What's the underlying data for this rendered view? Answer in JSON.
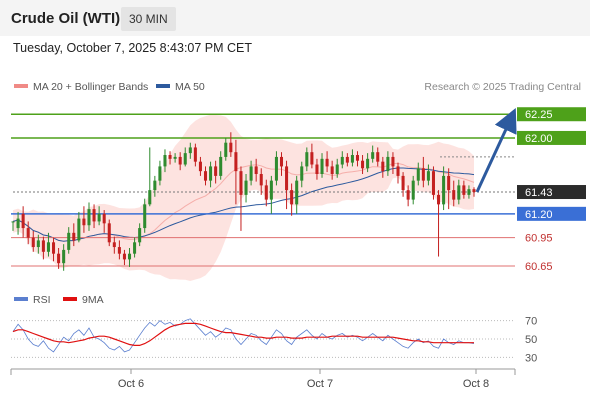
{
  "header": {
    "title": "Crude Oil (WTI)",
    "timeframe": "30 MIN"
  },
  "datetime": "Tuesday, October 7, 2025 8:43:07 PM CET",
  "legend": {
    "ma20": {
      "label": "MA 20 + Bollinger Bands",
      "color": "#f08a86"
    },
    "ma50": {
      "label": "MA 50",
      "color": "#2d5a9e"
    }
  },
  "credit": "Research © 2025 Trading Central",
  "rsi_legend": {
    "rsi": {
      "label": "RSI",
      "color": "#5b7fcf"
    },
    "ma9": {
      "label": "9MA",
      "color": "#e01010"
    }
  },
  "colors": {
    "up": "#2f8b2f",
    "down": "#c42020",
    "green_level": "#4ea11a",
    "blue_level": "#3a6fd6",
    "red_level": "#e07070",
    "current": "#2b2b2b"
  },
  "chart_data": [
    {
      "type": "candlestick",
      "title": "Crude Oil (WTI)",
      "ylim": [
        60.45,
        62.4
      ],
      "x_tick_labels": [
        "Oct 6",
        "Oct 7",
        "Oct 8"
      ],
      "current_price": 61.43,
      "levels": [
        {
          "value": 62.25,
          "label": "62.25",
          "style": "green-box"
        },
        {
          "value": 62.0,
          "label": "62.00",
          "style": "green-box"
        },
        {
          "value": 61.2,
          "label": "61.20",
          "style": "blue-box"
        },
        {
          "value": 60.95,
          "label": "60.95",
          "style": "red-text"
        },
        {
          "value": 60.65,
          "label": "60.65",
          "style": "red-text"
        }
      ],
      "forecast_arrow": {
        "from": 61.43,
        "to": 62.25
      },
      "candles": [
        [
          61.12,
          61.12,
          61.12,
          61.02
        ],
        [
          61.05,
          61.15,
          61.22,
          60.98
        ],
        [
          61.2,
          61.05,
          61.28,
          60.95
        ],
        [
          61.05,
          60.95,
          61.12,
          60.88
        ],
        [
          60.95,
          60.85,
          61.02,
          60.8
        ],
        [
          60.85,
          60.92,
          60.98,
          60.78
        ],
        [
          60.92,
          60.8,
          60.96,
          60.72
        ],
        [
          60.8,
          60.9,
          61.0,
          60.75
        ],
        [
          60.9,
          60.78,
          60.95,
          60.7
        ],
        [
          60.78,
          60.68,
          60.84,
          60.62
        ],
        [
          60.68,
          60.82,
          60.88,
          60.6
        ],
        [
          60.82,
          61.0,
          61.06,
          60.78
        ],
        [
          61.0,
          60.92,
          61.1,
          60.86
        ],
        [
          60.92,
          61.15,
          61.22,
          60.9
        ],
        [
          61.15,
          61.08,
          61.28,
          61.0
        ],
        [
          61.08,
          61.25,
          61.32,
          61.02
        ],
        [
          61.25,
          61.12,
          61.3,
          61.05
        ],
        [
          61.12,
          61.2,
          61.28,
          61.08
        ],
        [
          61.2,
          61.1,
          61.24,
          61.0
        ],
        [
          61.1,
          60.9,
          61.14,
          60.86
        ],
        [
          60.9,
          60.85,
          60.96,
          60.78
        ],
        [
          60.85,
          60.78,
          60.92,
          60.72
        ],
        [
          60.78,
          60.72,
          60.82,
          60.66
        ],
        [
          60.72,
          60.78,
          60.84,
          60.64
        ],
        [
          60.78,
          60.9,
          60.95,
          60.74
        ],
        [
          60.9,
          61.05,
          61.1,
          60.86
        ],
        [
          61.05,
          61.3,
          61.36,
          61.0
        ],
        [
          61.3,
          61.45,
          61.9,
          61.28
        ],
        [
          61.45,
          61.55,
          61.6,
          61.38
        ],
        [
          61.55,
          61.7,
          61.76,
          61.5
        ],
        [
          61.7,
          61.82,
          61.88,
          61.64
        ],
        [
          61.82,
          61.78,
          61.86,
          61.72
        ],
        [
          61.78,
          61.8,
          61.84,
          61.74
        ],
        [
          61.8,
          61.72,
          61.85,
          61.66
        ],
        [
          61.72,
          61.84,
          61.9,
          61.7
        ],
        [
          61.84,
          61.9,
          61.95,
          61.78
        ],
        [
          61.9,
          61.75,
          61.94,
          61.7
        ],
        [
          61.75,
          61.65,
          61.8,
          61.6
        ],
        [
          61.65,
          61.55,
          61.7,
          61.5
        ],
        [
          61.55,
          61.7,
          61.75,
          61.48
        ],
        [
          61.7,
          61.6,
          61.76,
          61.52
        ],
        [
          61.6,
          61.8,
          61.86,
          61.56
        ],
        [
          61.8,
          61.95,
          62.0,
          61.76
        ],
        [
          61.95,
          61.85,
          62.06,
          61.8
        ],
        [
          61.85,
          61.65,
          61.98,
          61.3
        ],
        [
          61.65,
          61.4,
          61.7,
          61.02
        ],
        [
          61.4,
          61.55,
          61.62,
          61.32
        ],
        [
          61.55,
          61.7,
          61.76,
          61.5
        ],
        [
          61.7,
          61.62,
          61.78,
          61.54
        ],
        [
          61.62,
          61.5,
          61.68,
          61.4
        ],
        [
          61.5,
          61.35,
          61.56,
          61.28
        ],
        [
          61.35,
          61.55,
          61.6,
          61.2
        ],
        [
          61.55,
          61.8,
          61.86,
          61.5
        ],
        [
          61.8,
          61.7,
          61.85,
          61.6
        ],
        [
          61.7,
          61.45,
          61.76,
          61.25
        ],
        [
          61.45,
          61.3,
          61.52,
          61.18
        ],
        [
          61.3,
          61.55,
          61.6,
          61.2
        ],
        [
          61.55,
          61.7,
          61.75,
          61.48
        ],
        [
          61.7,
          61.85,
          61.9,
          61.65
        ],
        [
          61.85,
          61.72,
          61.94,
          61.68
        ],
        [
          61.72,
          61.62,
          61.78,
          61.56
        ],
        [
          61.62,
          61.78,
          61.84,
          61.58
        ],
        [
          61.78,
          61.7,
          61.86,
          61.64
        ],
        [
          61.7,
          61.62,
          61.76,
          61.56
        ],
        [
          61.62,
          61.72,
          61.78,
          61.58
        ],
        [
          61.72,
          61.8,
          61.86,
          61.68
        ],
        [
          61.8,
          61.74,
          61.84,
          61.7
        ],
        [
          61.74,
          61.82,
          61.88,
          61.7
        ],
        [
          61.82,
          61.76,
          61.86,
          61.7
        ],
        [
          61.76,
          61.68,
          61.82,
          61.62
        ],
        [
          61.68,
          61.78,
          61.84,
          61.64
        ],
        [
          61.78,
          61.85,
          61.92,
          61.74
        ],
        [
          61.85,
          61.75,
          61.9,
          61.7
        ],
        [
          61.75,
          61.65,
          61.8,
          61.58
        ],
        [
          61.65,
          61.8,
          61.86,
          61.6
        ],
        [
          61.8,
          61.7,
          61.85,
          61.62
        ],
        [
          61.7,
          61.6,
          61.74,
          61.52
        ],
        [
          61.6,
          61.45,
          61.64,
          61.38
        ],
        [
          61.45,
          61.35,
          61.5,
          61.28
        ],
        [
          61.35,
          61.55,
          61.6,
          61.3
        ],
        [
          61.55,
          61.68,
          61.74,
          61.5
        ],
        [
          61.68,
          61.55,
          61.8,
          61.48
        ],
        [
          61.55,
          61.65,
          61.72,
          61.5
        ],
        [
          61.65,
          61.4,
          61.7,
          61.35
        ],
        [
          61.4,
          61.3,
          61.45,
          60.75
        ],
        [
          61.3,
          61.6,
          61.7,
          61.24
        ],
        [
          61.6,
          61.45,
          61.68,
          61.25
        ],
        [
          61.45,
          61.35,
          61.55,
          61.28
        ],
        [
          61.35,
          61.5,
          61.56,
          61.3
        ],
        [
          61.5,
          61.4,
          61.55,
          61.36
        ],
        [
          61.4,
          61.46,
          61.5,
          61.36
        ],
        [
          61.46,
          61.43,
          61.48,
          61.38
        ]
      ]
    },
    {
      "type": "line",
      "title": "RSI",
      "ylim": [
        25,
        75
      ],
      "y_ticks": [
        70,
        50,
        30
      ],
      "series": [
        {
          "name": "RSI",
          "values": [
            58,
            66,
            60,
            50,
            44,
            42,
            48,
            40,
            36,
            44,
            52,
            48,
            56,
            60,
            54,
            62,
            52,
            50,
            46,
            40,
            38,
            42,
            36,
            38,
            46,
            54,
            62,
            68,
            64,
            70,
            66,
            68,
            64,
            66,
            70,
            72,
            66,
            60,
            54,
            58,
            52,
            56,
            62,
            60,
            50,
            44,
            50,
            56,
            54,
            48,
            44,
            52,
            60,
            56,
            48,
            44,
            52,
            56,
            60,
            54,
            50,
            56,
            52,
            50,
            54,
            56,
            52,
            54,
            52,
            48,
            52,
            56,
            52,
            48,
            54,
            50,
            46,
            42,
            40,
            46,
            50,
            46,
            48,
            42,
            40,
            50,
            46,
            44,
            48,
            46,
            46,
            45
          ]
        },
        {
          "name": "9MA",
          "values": [
            58,
            60,
            60,
            58,
            56,
            54,
            52,
            50,
            48,
            47,
            47,
            46,
            47,
            48,
            49,
            51,
            52,
            53,
            53,
            52,
            50,
            48,
            46,
            44,
            43,
            43,
            45,
            48,
            52,
            56,
            60,
            63,
            65,
            66,
            67,
            67,
            67,
            66,
            64,
            62,
            60,
            58,
            57,
            57,
            56,
            55,
            54,
            53,
            52,
            52,
            51,
            51,
            52,
            52,
            52,
            51,
            51,
            51,
            52,
            52,
            52,
            52,
            52,
            53,
            53,
            53,
            53,
            53,
            53,
            52,
            52,
            52,
            52,
            52,
            52,
            52,
            51,
            50,
            49,
            48,
            48,
            47,
            47,
            46,
            46,
            46,
            46,
            46,
            46,
            46,
            46,
            46
          ]
        }
      ]
    }
  ]
}
